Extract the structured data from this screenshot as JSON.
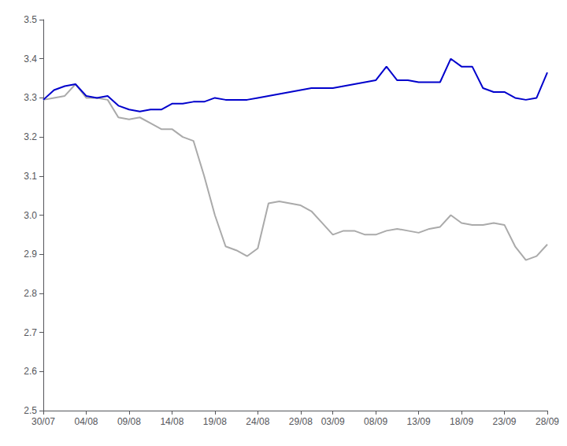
{
  "chart_data": {
    "type": "line",
    "categories": [
      "30/07",
      null,
      null,
      null,
      "04/08",
      null,
      null,
      null,
      "09/08",
      null,
      null,
      null,
      "14/08",
      null,
      null,
      null,
      "19/08",
      null,
      null,
      null,
      "24/08",
      null,
      null,
      null,
      "29/08",
      null,
      null,
      "03/09",
      null,
      null,
      null,
      "08/09",
      null,
      null,
      null,
      "13/09",
      null,
      null,
      null,
      "18/09",
      null,
      null,
      null,
      "23/09",
      null,
      null,
      null,
      "28/09"
    ],
    "series": [
      {
        "color": "#aaaaaa",
        "values": [
          3.295,
          3.3,
          3.305,
          3.335,
          3.3,
          3.3,
          3.295,
          3.25,
          3.245,
          3.25,
          3.235,
          3.22,
          3.22,
          3.2,
          3.19,
          3.1,
          3.0,
          2.92,
          2.91,
          2.895,
          2.915,
          3.03,
          3.035,
          3.03,
          3.025,
          3.01,
          2.98,
          2.95,
          2.96,
          2.96,
          2.95,
          2.95,
          2.96,
          2.965,
          2.96,
          2.955,
          2.965,
          2.97,
          3.0,
          2.98,
          2.975,
          2.975,
          2.98,
          2.975,
          2.92,
          2.885,
          2.895,
          2.925
        ]
      },
      {
        "color": "#0000cc",
        "values": [
          3.295,
          3.32,
          3.33,
          3.335,
          3.305,
          3.3,
          3.305,
          3.28,
          3.27,
          3.265,
          3.27,
          3.27,
          3.285,
          3.285,
          3.29,
          3.29,
          3.3,
          3.295,
          3.295,
          3.295,
          3.3,
          3.305,
          3.31,
          3.315,
          3.32,
          3.325,
          3.325,
          3.325,
          3.33,
          3.335,
          3.34,
          3.345,
          3.38,
          3.345,
          3.345,
          3.34,
          3.34,
          3.34,
          3.4,
          3.38,
          3.38,
          3.325,
          3.315,
          3.315,
          3.3,
          3.295,
          3.3,
          3.365
        ]
      }
    ],
    "ylim": [
      2.5,
      3.5
    ],
    "yticks": [
      2.5,
      2.6,
      2.7,
      2.8,
      2.9,
      {
        "value": 3,
        "label": "3.0"
      },
      3.1,
      3.2,
      3.3,
      3.4,
      3.5
    ],
    "grid": false
  }
}
